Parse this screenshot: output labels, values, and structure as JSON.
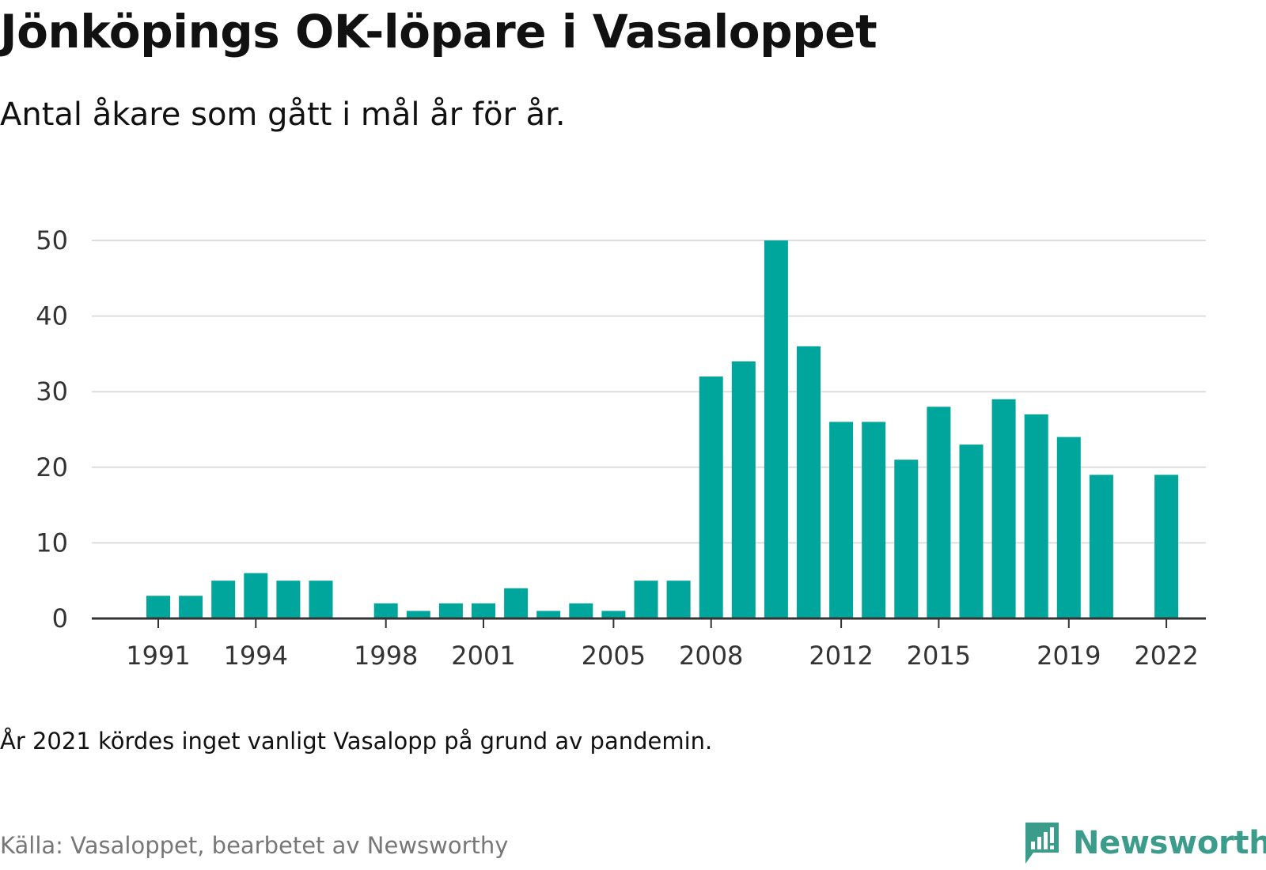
{
  "title": "Jönköpings OK-löpare i Vasaloppet",
  "subtitle": "Antal åkare som gått i mål år för år.",
  "note": "År 2021 kördes inget vanligt Vasalopp på grund av pandemin.",
  "source": "Källa: Vasaloppet, bearbetet av Newsworthy",
  "brand": {
    "name": "Newsworthy",
    "icon": "newsworthy-logo-icon"
  },
  "colors": {
    "bar": "#00a59c",
    "grid": "#dddddd",
    "axis": "#333333",
    "brand": "#3c9c8c"
  },
  "chart_data": {
    "type": "bar",
    "title": "Jönköpings OK-löpare i Vasaloppet",
    "xlabel": "",
    "ylabel": "",
    "x": [
      1991,
      1992,
      1993,
      1994,
      1995,
      1996,
      1997,
      1998,
      1999,
      2000,
      2001,
      2002,
      2003,
      2004,
      2005,
      2006,
      2007,
      2008,
      2009,
      2010,
      2011,
      2012,
      2013,
      2014,
      2015,
      2016,
      2017,
      2018,
      2019,
      2020,
      2021,
      2022
    ],
    "values": [
      3,
      3,
      5,
      6,
      5,
      5,
      null,
      2,
      1,
      2,
      2,
      4,
      1,
      2,
      1,
      5,
      5,
      32,
      34,
      50,
      36,
      26,
      26,
      21,
      28,
      23,
      29,
      27,
      24,
      19,
      null,
      19
    ],
    "x_ticks": [
      1991,
      1994,
      1998,
      2001,
      2005,
      2008,
      2012,
      2015,
      2019,
      2022
    ],
    "y_ticks": [
      0,
      10,
      20,
      30,
      40,
      50
    ],
    "ylim": [
      0,
      50
    ],
    "grid": true,
    "legend": "none"
  }
}
